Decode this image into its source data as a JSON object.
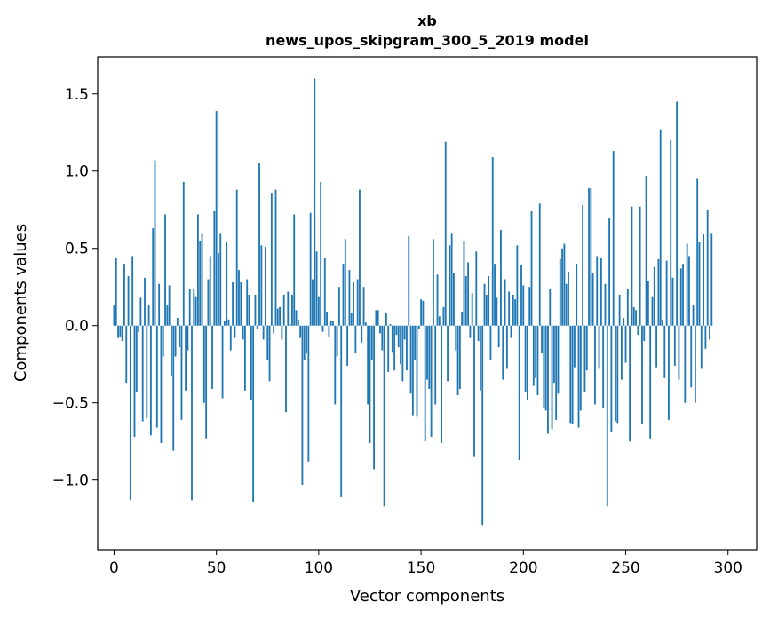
{
  "chart_data": {
    "type": "bar",
    "title": "xb",
    "subtitle": "news_upos_skipgram_300_5_2019 model",
    "xlabel": "Vector components",
    "ylabel": "Components values",
    "xlim": [
      -8,
      314
    ],
    "ylim": [
      -1.45,
      1.74
    ],
    "xticks": [
      0,
      50,
      100,
      150,
      200,
      250,
      300
    ],
    "xtick_labels": [
      "0",
      "50",
      "100",
      "150",
      "200",
      "250",
      "300"
    ],
    "yticks": [
      -1.0,
      -0.5,
      0.0,
      0.5,
      1.0,
      1.5
    ],
    "ytick_labels": [
      "−1.0",
      "−0.5",
      "0.0",
      "0.5",
      "1.0",
      "1.5"
    ],
    "bar_color": "#1f77b4",
    "bar_width": 0.8,
    "values": [
      0.13,
      0.44,
      -0.08,
      -0.07,
      -0.1,
      0.4,
      -0.37,
      0.32,
      -1.13,
      0.45,
      -0.72,
      -0.43,
      -0.04,
      0.18,
      -0.62,
      0.31,
      -0.6,
      0.13,
      -0.71,
      0.63,
      1.07,
      -0.66,
      0.27,
      -0.76,
      -0.2,
      0.72,
      0.13,
      0.26,
      -0.33,
      -0.81,
      -0.2,
      0.05,
      -0.14,
      -0.61,
      0.93,
      -0.42,
      -0.16,
      0.24,
      -1.13,
      0.24,
      0.19,
      0.72,
      0.55,
      0.6,
      -0.5,
      -0.73,
      0.3,
      0.45,
      -0.41,
      0.74,
      1.39,
      0.47,
      0.6,
      -0.47,
      0.03,
      0.54,
      0.04,
      -0.16,
      0.28,
      -0.08,
      0.88,
      0.36,
      0.28,
      -0.09,
      -0.42,
      0.3,
      0.2,
      -0.48,
      -1.14,
      0.2,
      -0.02,
      1.05,
      0.52,
      -0.09,
      0.51,
      -0.22,
      -0.36,
      0.86,
      -0.05,
      0.88,
      0.11,
      0.12,
      -0.09,
      0.2,
      -0.56,
      0.22,
      0.01,
      0.2,
      0.72,
      0.1,
      0.04,
      -0.08,
      -1.03,
      -0.22,
      -0.18,
      -0.88,
      0.73,
      0.3,
      1.6,
      0.48,
      0.19,
      0.93,
      -0.04,
      0.44,
      0.09,
      -0.07,
      0.03,
      0.03,
      -0.51,
      -0.2,
      0.25,
      -1.11,
      0.4,
      0.56,
      -0.26,
      0.36,
      0.08,
      0.28,
      -0.18,
      0.3,
      0.88,
      -0.11,
      0.25,
      0.02,
      -0.51,
      -0.76,
      -0.22,
      -0.93,
      0.1,
      0.1,
      -0.05,
      -0.16,
      -1.17,
      0.08,
      -0.3,
      0.01,
      -0.17,
      -0.29,
      -0.06,
      -0.14,
      -0.25,
      -0.36,
      -0.09,
      -0.29,
      0.58,
      -0.44,
      -0.58,
      -0.22,
      -0.59,
      -0.02,
      0.17,
      0.16,
      -0.75,
      -0.35,
      -0.41,
      -0.72,
      0.56,
      -0.51,
      0.33,
      0.06,
      -0.76,
      0.12,
      1.19,
      -0.36,
      0.52,
      0.6,
      0.34,
      -0.16,
      -0.45,
      -0.41,
      0.09,
      0.55,
      0.32,
      0.41,
      -0.08,
      0.21,
      -0.85,
      0.48,
      -0.1,
      -0.42,
      -1.29,
      0.27,
      0.2,
      0.32,
      -0.22,
      1.09,
      0.4,
      0.18,
      -0.14,
      0.62,
      -0.35,
      0.3,
      -0.28,
      0.22,
      -0.08,
      0.2,
      0.17,
      0.52,
      -0.87,
      0.39,
      0.26,
      -0.43,
      -0.48,
      0.25,
      0.74,
      -0.39,
      -0.34,
      -0.45,
      0.79,
      -0.18,
      -0.53,
      -0.55,
      -0.7,
      0.24,
      -0.67,
      -0.37,
      -0.61,
      -0.44,
      0.43,
      0.5,
      0.53,
      0.27,
      0.35,
      -0.63,
      -0.64,
      -0.27,
      0.4,
      -0.66,
      -0.55,
      0.78,
      -0.43,
      -0.29,
      0.89,
      0.89,
      0.34,
      -0.51,
      0.45,
      -0.28,
      0.44,
      -0.53,
      0.27,
      -1.17,
      0.7,
      -0.69,
      1.13,
      -0.62,
      -0.63,
      0.2,
      -0.35,
      0.05,
      -0.24,
      0.24,
      -0.75,
      0.77,
      0.12,
      0.1,
      -0.06,
      0.77,
      -0.64,
      -0.1,
      0.97,
      0.29,
      -0.73,
      0.19,
      0.38,
      -0.27,
      0.43,
      1.27,
      0.04,
      -0.34,
      0.42,
      -0.61,
      1.2,
      0.31,
      -0.26,
      1.45,
      -0.35,
      0.37,
      0.4,
      -0.5,
      0.53,
      0.45,
      -0.4,
      0.13,
      -0.5,
      0.95,
      0.54,
      -0.28,
      0.59,
      -0.15,
      0.75,
      -0.09,
      0.6
    ]
  }
}
